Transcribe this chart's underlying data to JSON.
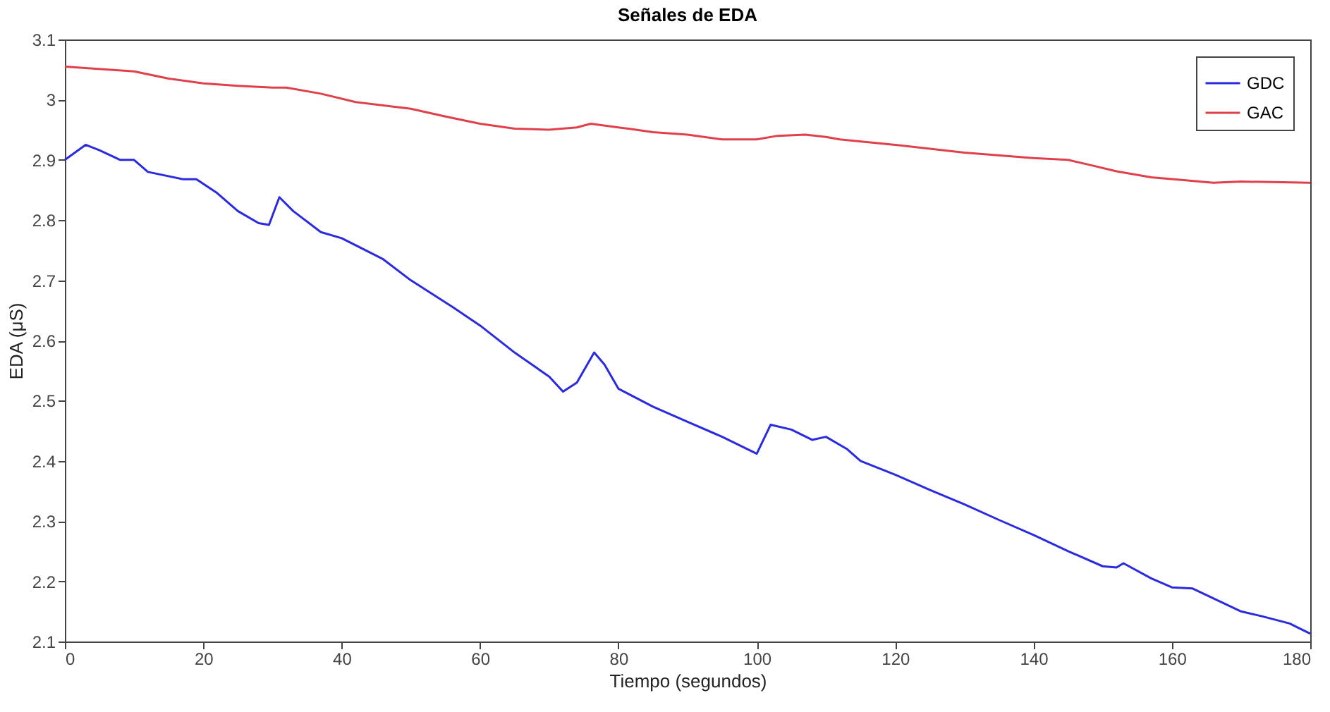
{
  "chart_data": {
    "type": "line",
    "title": "Señales de EDA",
    "xlabel": "Tiempo (segundos)",
    "ylabel": "EDA (μS)",
    "xlim": [
      0,
      180
    ],
    "xticks": [
      0,
      20,
      40,
      60,
      80,
      100,
      120,
      140,
      160,
      180
    ],
    "ylim": [
      2.1,
      3.1
    ],
    "yticks": [
      2.1,
      2.2,
      2.3,
      2.4,
      2.5,
      2.6,
      2.7,
      2.8,
      2.9,
      3,
      3.1
    ],
    "grid": false,
    "legend": "top right",
    "marker": "none",
    "line_style": "solid",
    "series": [
      {
        "name": "GDC",
        "color": "#2a2ae0",
        "x": [
          0,
          3,
          5,
          8,
          10,
          12,
          17,
          19,
          22,
          25,
          28,
          29.5,
          31,
          33,
          37,
          40,
          46,
          50,
          56,
          60,
          65,
          70,
          72,
          74,
          76.5,
          78,
          80,
          85,
          90,
          95,
          100,
          102,
          105,
          108,
          110,
          113,
          115,
          120,
          125,
          130,
          135,
          140,
          145,
          150,
          152,
          153,
          157,
          160,
          163,
          170,
          173,
          177,
          180
        ],
        "values": [
          2.9,
          2.925,
          2.916,
          2.9,
          2.9,
          2.88,
          2.868,
          2.868,
          2.845,
          2.815,
          2.795,
          2.792,
          2.838,
          2.815,
          2.78,
          2.77,
          2.735,
          2.7,
          2.656,
          2.625,
          2.58,
          2.54,
          2.515,
          2.53,
          2.58,
          2.56,
          2.52,
          2.49,
          2.465,
          2.44,
          2.412,
          2.46,
          2.452,
          2.435,
          2.44,
          2.42,
          2.4,
          2.377,
          2.352,
          2.328,
          2.302,
          2.277,
          2.25,
          2.225,
          2.223,
          2.23,
          2.205,
          2.19,
          2.188,
          2.15,
          2.142,
          2.13,
          2.113
        ]
      },
      {
        "name": "GAC",
        "color": "#e0404a",
        "x": [
          0,
          10,
          15,
          20,
          25,
          30,
          32,
          37,
          42,
          50,
          55,
          60,
          65,
          70,
          74,
          76,
          80,
          82,
          85,
          90,
          95,
          100,
          103,
          107,
          110,
          112,
          120,
          130,
          140,
          145,
          148,
          152,
          157,
          162,
          166,
          170,
          180
        ],
        "values": [
          3.055,
          3.047,
          3.035,
          3.027,
          3.023,
          3.02,
          3.02,
          3.01,
          2.996,
          2.985,
          2.972,
          2.96,
          2.952,
          2.95,
          2.954,
          2.96,
          2.954,
          2.951,
          2.946,
          2.942,
          2.934,
          2.934,
          2.94,
          2.942,
          2.938,
          2.934,
          2.925,
          2.912,
          2.903,
          2.9,
          2.892,
          2.881,
          2.871,
          2.866,
          2.862,
          2.864,
          2.862
        ]
      }
    ]
  }
}
